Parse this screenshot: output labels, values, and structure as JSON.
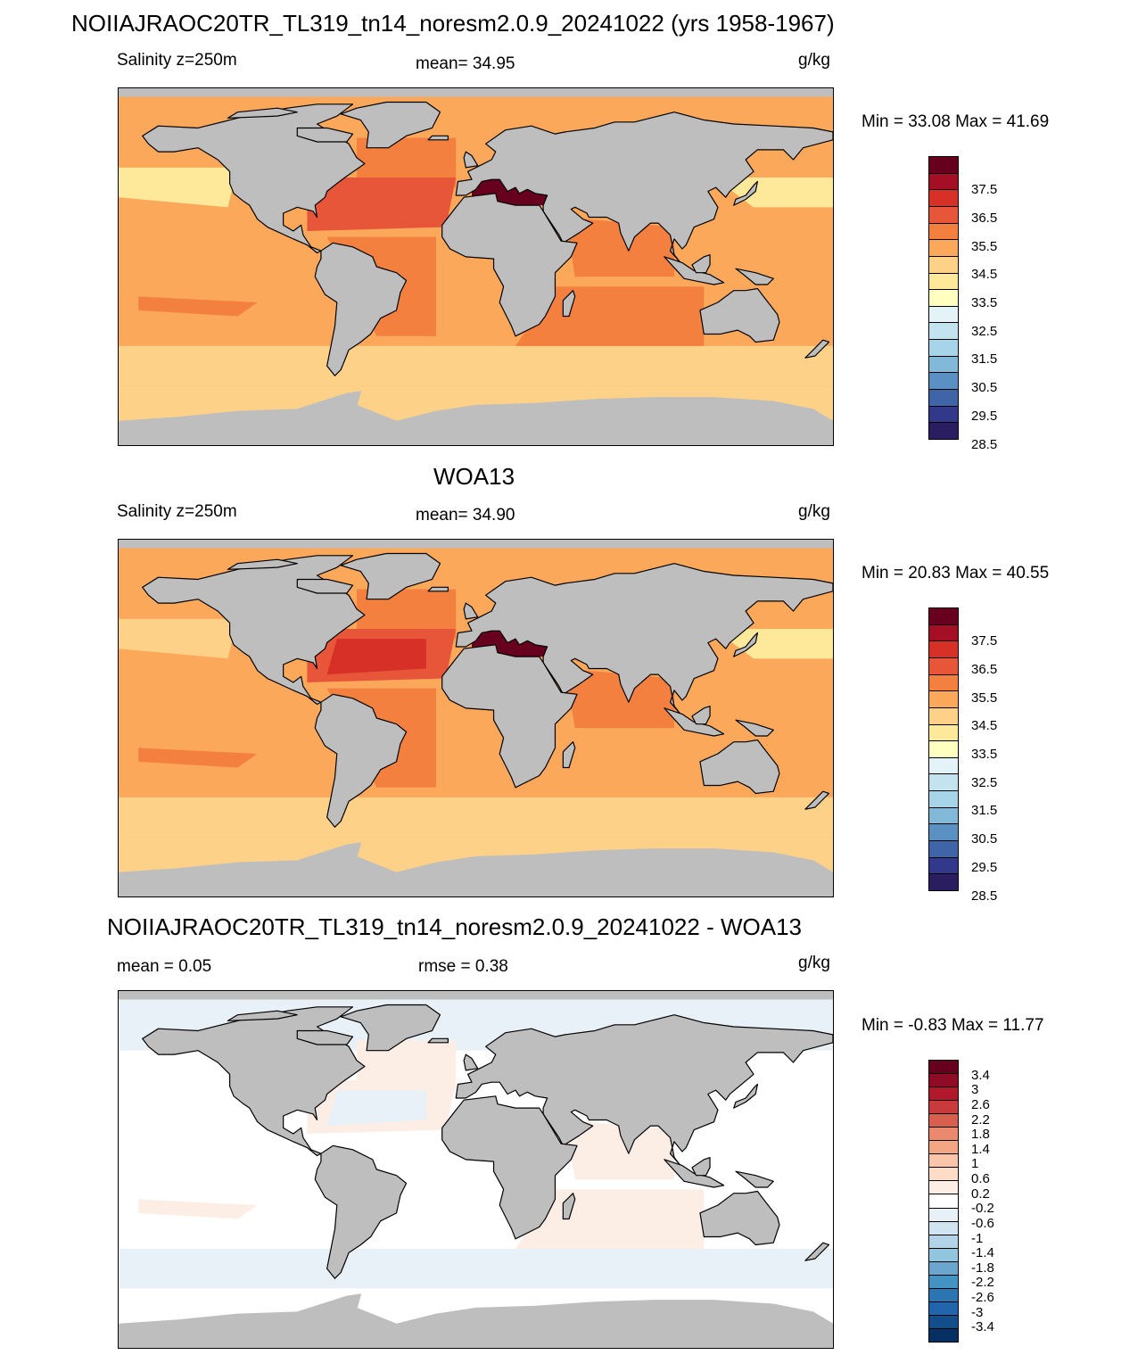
{
  "main_title": "NOIIAJRAOC20TR_TL319_tn14_noresm2.0.9_20241022 (yrs 1958-1967)",
  "panels": [
    {
      "heading": "",
      "left_label": "Salinity z=250m",
      "center_label": "mean=  34.95",
      "unit": "g/kg",
      "minmax": "Min =  33.08 Max =  41.69",
      "field": "model"
    },
    {
      "heading": "WOA13",
      "left_label": "Salinity z=250m",
      "center_label": "mean=  34.90",
      "unit": "g/kg",
      "minmax": "Min =  20.83 Max =  40.55",
      "field": "obs"
    },
    {
      "heading": "NOIIAJRAOC20TR_TL319_tn14_noresm2.0.9_20241022 - WOA13",
      "left_label": "mean =   0.05",
      "center_label": "rmse =   0.38",
      "unit": "g/kg",
      "minmax": "Min =  -0.83 Max =  11.77",
      "field": "diff"
    }
  ],
  "colorbars": {
    "salinity": {
      "labels": [
        "37.5",
        "36.5",
        "35.5",
        "34.5",
        "33.5",
        "32.5",
        "31.5",
        "30.5",
        "29.5",
        "28.5"
      ],
      "colors": [
        "#67001f",
        "#a50f26",
        "#d73027",
        "#e8563a",
        "#f4803f",
        "#fba85a",
        "#fdd188",
        "#fee99a",
        "#ffffbf",
        "#e3f3f7",
        "#c3e4ef",
        "#a6d4e8",
        "#82b8d8",
        "#5b91c2",
        "#4064a8",
        "#33398a",
        "#2a1e60"
      ]
    },
    "difference": {
      "labels": [
        "3.4",
        "3",
        "2.6",
        "2.2",
        "1.8",
        "1.4",
        "1",
        "0.6",
        "0.2",
        "-0.2",
        "-0.6",
        "-1",
        "-1.4",
        "-1.8",
        "-2.2",
        "-2.6",
        "-3",
        "-3.4"
      ],
      "colors": [
        "#67001f",
        "#8e0c26",
        "#b2182b",
        "#c93a3c",
        "#d6604d",
        "#e98a6f",
        "#f4a582",
        "#f9c6ac",
        "#fddbc7",
        "#fdeee5",
        "#ffffff",
        "#e8f1f7",
        "#d1e5f0",
        "#b2d3e8",
        "#92c5de",
        "#6aa6cd",
        "#4393c3",
        "#2c75b3",
        "#2166ac",
        "#134e8c",
        "#053061"
      ]
    }
  },
  "colors": {
    "land": "#bebebe",
    "coast": "#000000"
  }
}
